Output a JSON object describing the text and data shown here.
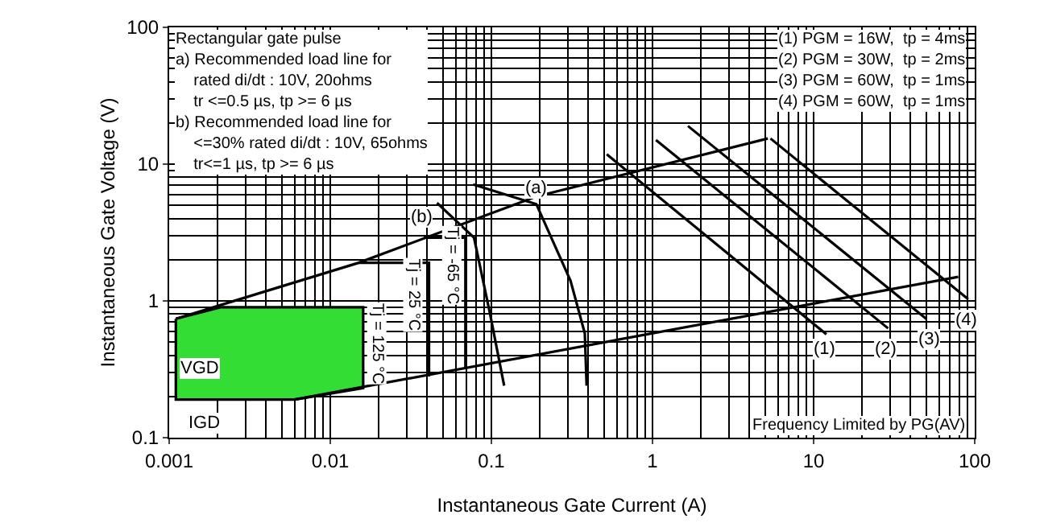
{
  "chart_data": {
    "type": "line",
    "xlabel": "Instantaneous Gate Current (A)",
    "ylabel": "Instantaneous Gate Voltage (V)",
    "log": "xy",
    "xlim": [
      0.001,
      100
    ],
    "ylim": [
      0.1,
      100
    ],
    "xticks": [
      0.001,
      0.01,
      0.1,
      1,
      10,
      100
    ],
    "yticks": [
      0.1,
      1,
      10,
      100
    ],
    "grid": true,
    "marker": "none",
    "line_style": "solid",
    "series": [
      {
        "type": "area",
        "color": "#33dd33",
        "x": [
          0.0011,
          0.0021,
          0.016,
          0.016,
          0.006,
          0.0011,
          0.0011
        ],
        "values": [
          0.74,
          0.9,
          0.9,
          0.23,
          0.19,
          0.19,
          0.74
        ]
      },
      {
        "color": "#000000",
        "x": [
          0.0011,
          0.015,
          0.19,
          5.2
        ],
        "values": [
          0.74,
          1.9,
          5.8,
          15.4
        ]
      },
      {
        "color": "#000000",
        "x": [
          0.006,
          79
        ],
        "values": [
          0.19,
          1.5
        ]
      },
      {
        "color": "#000000",
        "x": [
          0.015,
          0.041,
          0.041
        ],
        "values": [
          1.9,
          1.9,
          0.28
        ]
      },
      {
        "color": "#000000",
        "x": [
          0.038,
          0.069,
          0.069
        ],
        "values": [
          2.9,
          2.9,
          0.32
        ]
      },
      {
        "color": "#000000",
        "x": [
          0.046,
          0.078,
          0.098,
          0.12
        ],
        "values": [
          5.2,
          2.9,
          0.81,
          0.24
        ]
      },
      {
        "color": "#000000",
        "x": [
          0.077,
          0.19,
          0.31,
          0.38,
          0.39
        ],
        "values": [
          7.1,
          5.1,
          1.4,
          0.58,
          0.24
        ]
      },
      {
        "color": "#000000",
        "x": [
          0.52,
          12
        ],
        "values": [
          11.8,
          0.57
        ]
      },
      {
        "color": "#000000",
        "x": [
          1.05,
          29
        ],
        "values": [
          15,
          0.63
        ]
      },
      {
        "color": "#000000",
        "x": [
          1.66,
          50
        ],
        "values": [
          19,
          0.74
        ]
      },
      {
        "color": "#000000",
        "x": [
          5.4,
          91
        ],
        "values": [
          15.4,
          1.03
        ]
      }
    ],
    "annotations": [
      "Rectangular gate pulse\na) Recommended load line for\n    rated di/dt : 10V, 20ohms\n    tr <=0.5 µs, tp >= 6 µs\nb) Recommended load line for\n    <=30% rated di/dt : 10V, 65ohms\n    tr<=1 µs, tp >= 6 µs",
      "(1) PGM = 16W,  tp = 4ms\n(2) PGM = 30W,  tp = 2ms\n(3) PGM = 60W,  tp = 1ms\n(4) PGM = 60W,  tp = 1ms",
      "Frequency Limited by PG(AV)",
      "Tj = 125 °C",
      "Tj = 25 °C",
      "Tj = -65 °C",
      {
        "text": "(a)",
        "x": 0.19,
        "y": 6.6
      },
      {
        "text": "(b)",
        "x": 0.037,
        "y": 4.1
      },
      {
        "text": "(1)",
        "x": 11.7,
        "y": 0.44
      },
      {
        "text": "(2)",
        "x": 27.7,
        "y": 0.44
      },
      {
        "text": "(3)",
        "x": 52,
        "y": 0.52
      },
      {
        "text": "(4)",
        "x": 89,
        "y": 0.72
      },
      {
        "text": "VGD",
        "x": 0.00155,
        "y": 0.32
      },
      {
        "text": "IGD",
        "x": 0.00166,
        "y": 0.127
      }
    ]
  }
}
